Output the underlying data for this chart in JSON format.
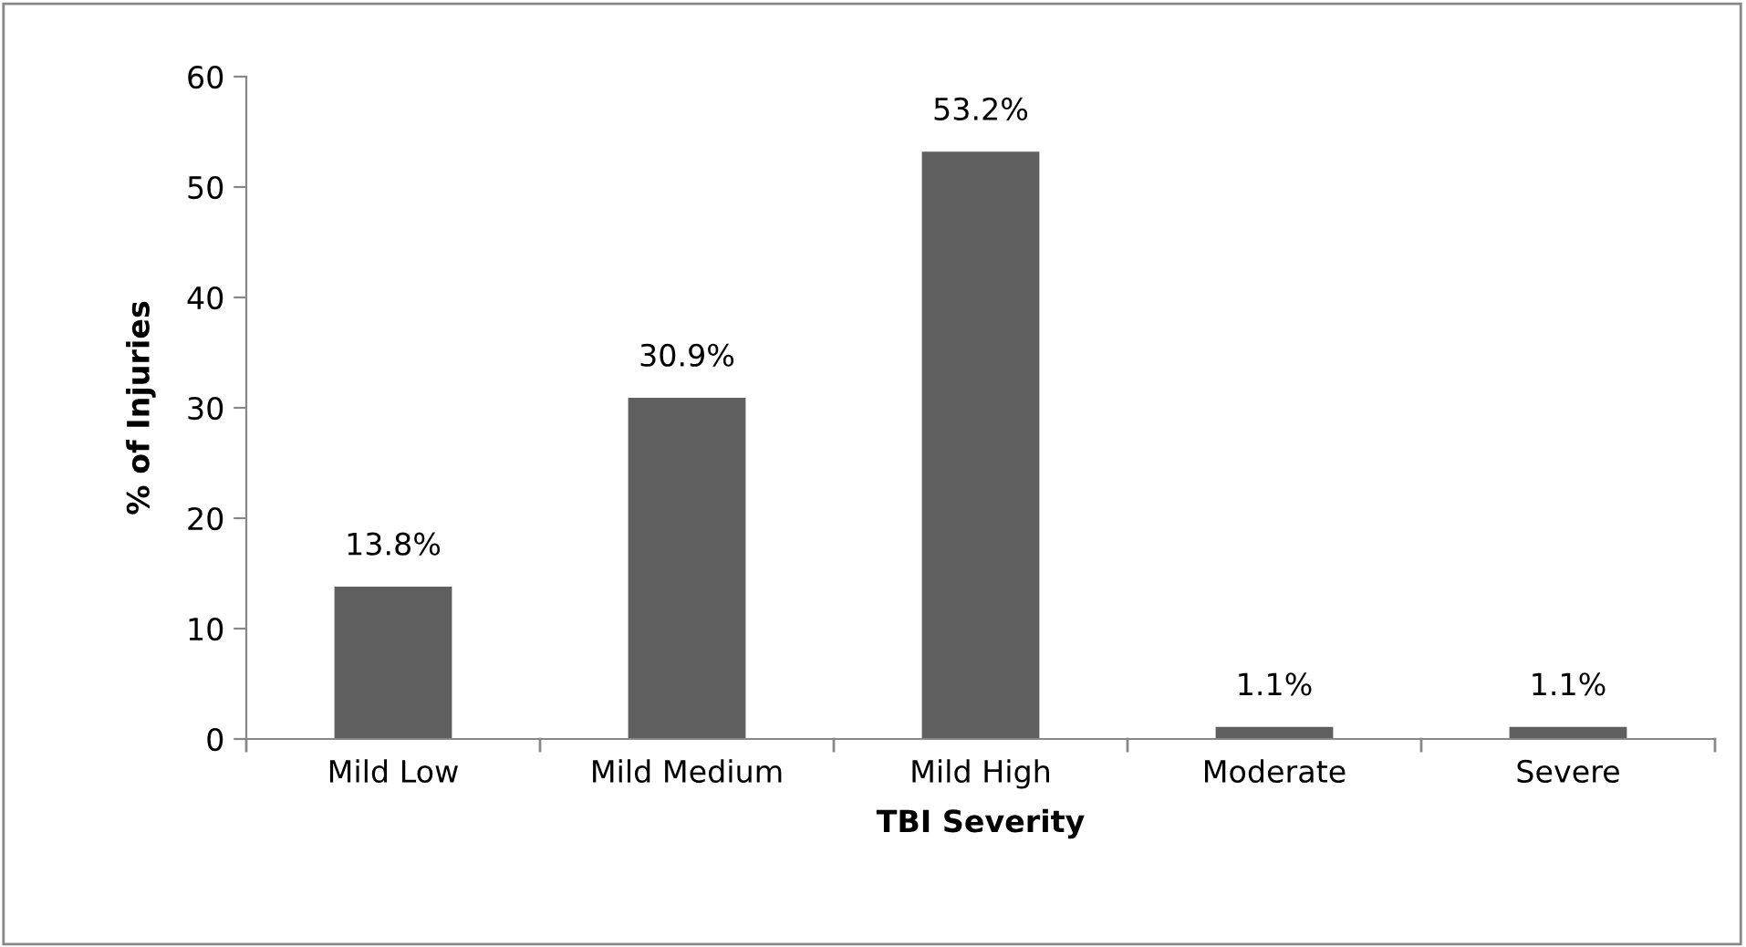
{
  "chart_data": {
    "type": "bar",
    "xlabel": "TBI Severity",
    "ylabel": "% of Injuries",
    "categories": [
      "Mild Low",
      "Mild Medium",
      "Mild High",
      "Moderate",
      "Severe"
    ],
    "values": [
      13.8,
      30.9,
      53.2,
      1.1,
      1.1
    ],
    "value_labels": [
      "13.8%",
      "30.9%",
      "53.2%",
      "1.1%",
      "1.1%"
    ],
    "color": "#5f5f5f",
    "ylim": [
      0,
      60
    ],
    "yticks": [
      0,
      10,
      20,
      30,
      40,
      50,
      60
    ],
    "grid": false,
    "legend": false
  }
}
